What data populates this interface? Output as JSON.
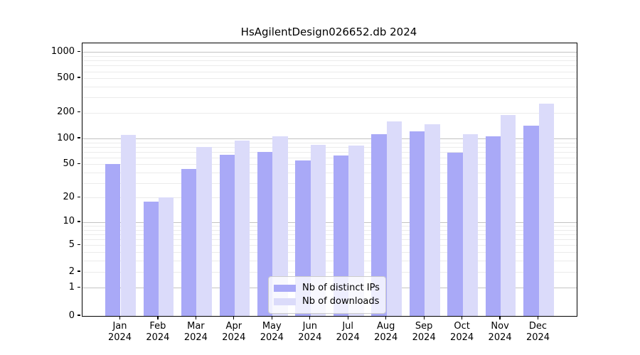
{
  "title": "HsAgilentDesign026652.db 2024",
  "colors": {
    "distinct_ips_bar": "#a9a9f7",
    "downloads_bar": "#dbdbfa",
    "grid_major": "#c3c3c3",
    "grid_minor": "#ebebeb",
    "axis": "#000000",
    "legend_border": "#cccccc"
  },
  "legend": {
    "items": [
      {
        "label": "Nb of distinct IPs",
        "color": "#a9a9f7"
      },
      {
        "label": "Nb of downloads",
        "color": "#dbdbfa"
      }
    ]
  },
  "chart_data": {
    "type": "bar",
    "title": "HsAgilentDesign026652.db 2024",
    "categories": [
      "Jan 2024",
      "Feb 2024",
      "Mar 2024",
      "Apr 2024",
      "May 2024",
      "Jun 2024",
      "Jul 2024",
      "Aug 2024",
      "Sep 2024",
      "Oct 2024",
      "Nov 2024",
      "Dec 2024"
    ],
    "x_tick_months": [
      "Jan",
      "Feb",
      "Mar",
      "Apr",
      "May",
      "Jun",
      "Jul",
      "Aug",
      "Sep",
      "Oct",
      "Nov",
      "Dec"
    ],
    "x_tick_year": "2024",
    "series": [
      {
        "name": "Nb of distinct IPs",
        "color": "#a9a9f7",
        "values": [
          50,
          18,
          44,
          65,
          70,
          55,
          63,
          113,
          120,
          68,
          106,
          140
        ]
      },
      {
        "name": "Nb of downloads",
        "color": "#dbdbfa",
        "values": [
          110,
          20,
          80,
          95,
          105,
          85,
          83,
          158,
          146,
          112,
          188,
          253
        ]
      }
    ],
    "xlabel": "",
    "ylabel": "",
    "y_scale": "log-like (log10(value+0.9))",
    "y_ticks": [
      0,
      1,
      2,
      5,
      10,
      20,
      50,
      100,
      200,
      500,
      1000
    ],
    "ylim": [
      0,
      1265
    ],
    "grid": "horizontal major + log minor gridlines",
    "legend_position": "lower center inside plot"
  }
}
